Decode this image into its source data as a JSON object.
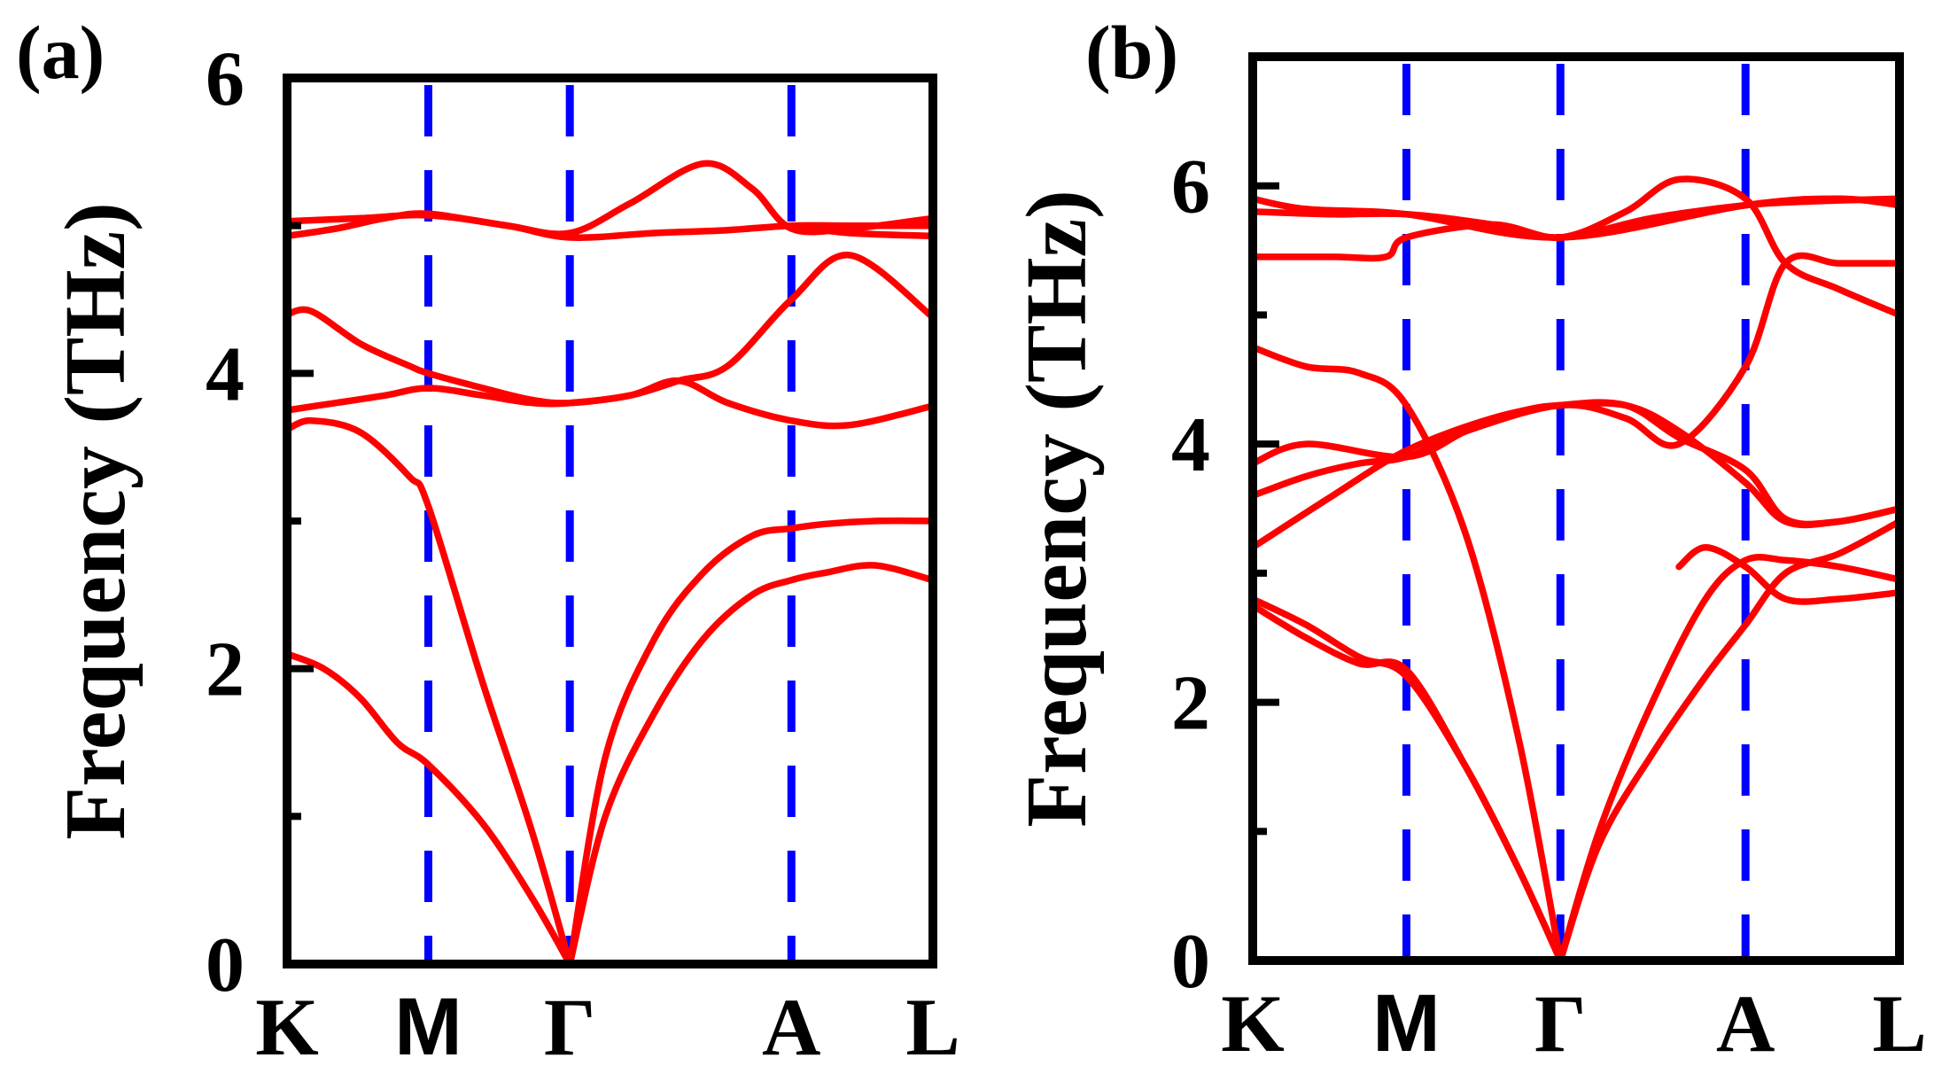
{
  "chart_data": [
    {
      "type": "line",
      "panel_label": "(a)",
      "ylabel": "Frequency (THz)",
      "xlabel": "",
      "ylim": [
        0,
        6
      ],
      "y_ticks": [
        "0",
        "2",
        "4",
        "6"
      ],
      "high_symmetry_points": [
        "K",
        "M",
        "Γ",
        "A",
        "L"
      ],
      "path_positions": [
        0,
        0.577,
        1.155,
        2.06,
        2.638
      ],
      "line_color": "#ff0000",
      "divider_color": "#0000ff",
      "series": [
        {
          "name": "band-1",
          "x": [
            0,
            0.15,
            0.3,
            0.45,
            0.577,
            0.8,
            1.0,
            1.155
          ],
          "y": [
            2.1,
            2.0,
            1.8,
            1.5,
            1.35,
            0.95,
            0.45,
            0.0
          ]
        },
        {
          "name": "band-2",
          "x": [
            0,
            0.1,
            0.3,
            0.5,
            0.577,
            0.8,
            1.0,
            1.155
          ],
          "y": [
            3.62,
            3.68,
            3.6,
            3.3,
            3.1,
            1.9,
            0.9,
            0.0
          ]
        },
        {
          "name": "band-3",
          "x": [
            1.155,
            1.3,
            1.5,
            1.7,
            1.9,
            2.06,
            2.2,
            2.4,
            2.638
          ],
          "y": [
            0.0,
            1.0,
            1.7,
            2.2,
            2.5,
            2.6,
            2.65,
            2.7,
            2.6
          ]
        },
        {
          "name": "band-4",
          "x": [
            1.155,
            1.3,
            1.5,
            1.7,
            1.9,
            2.06,
            2.2,
            2.4,
            2.638
          ],
          "y": [
            0.0,
            1.4,
            2.2,
            2.65,
            2.9,
            2.95,
            2.98,
            3.0,
            3.0
          ]
        },
        {
          "name": "band-5",
          "x": [
            0,
            0.2,
            0.4,
            0.577,
            0.8,
            1.0,
            1.155,
            1.4,
            1.6,
            1.8,
            2.06,
            2.3,
            2.638
          ],
          "y": [
            3.75,
            3.8,
            3.85,
            3.9,
            3.85,
            3.8,
            3.8,
            3.85,
            3.95,
            4.05,
            4.5,
            4.8,
            4.38
          ]
        },
        {
          "name": "band-6",
          "x": [
            0,
            0.1,
            0.3,
            0.5,
            0.577,
            0.8,
            1.0,
            1.155,
            1.4,
            1.6,
            1.8,
            2.06,
            2.3,
            2.638
          ],
          "y": [
            4.4,
            4.42,
            4.2,
            4.05,
            4.0,
            3.9,
            3.82,
            3.8,
            3.85,
            3.95,
            3.8,
            3.68,
            3.65,
            3.78
          ]
        },
        {
          "name": "band-7",
          "x": [
            0,
            0.3,
            0.577,
            0.9,
            1.155,
            1.5,
            1.8,
            2.06,
            2.3,
            2.638
          ],
          "y": [
            5.03,
            5.05,
            5.07,
            5.0,
            4.92,
            4.95,
            4.97,
            5.0,
            5.0,
            5.0
          ]
        },
        {
          "name": "band-8",
          "x": [
            0,
            0.2,
            0.4,
            0.577,
            0.9,
            1.155,
            1.4,
            1.7,
            1.9,
            2.06,
            2.3,
            2.638
          ],
          "y": [
            4.93,
            4.98,
            5.05,
            5.08,
            5.0,
            4.95,
            5.15,
            5.42,
            5.25,
            4.98,
            4.98,
            5.05
          ]
        },
        {
          "name": "band-9",
          "x": [
            2.06,
            2.3,
            2.638
          ],
          "y": [
            5.0,
            4.95,
            4.93
          ]
        }
      ]
    },
    {
      "type": "line",
      "panel_label": "(b)",
      "ylabel": "Frequency (THz)",
      "xlabel": "",
      "ylim": [
        0,
        7
      ],
      "y_ticks": [
        "0",
        "2",
        "4",
        "6"
      ],
      "high_symmetry_points": [
        "K",
        "M",
        "Γ",
        "A",
        "L"
      ],
      "path_positions": [
        0,
        0.577,
        1.155,
        1.85,
        2.428
      ],
      "line_color": "#ff0000",
      "divider_color": "#0000ff",
      "series": [
        {
          "name": "band-1",
          "x": [
            0,
            0.2,
            0.4,
            0.577,
            0.8,
            1.0,
            1.155
          ],
          "y": [
            2.8,
            2.6,
            2.35,
            2.2,
            1.5,
            0.7,
            0.0
          ]
        },
        {
          "name": "band-2",
          "x": [
            0,
            0.2,
            0.4,
            0.577,
            0.8,
            1.0,
            1.155
          ],
          "y": [
            2.75,
            2.5,
            2.3,
            2.25,
            1.5,
            0.7,
            0.0
          ]
        },
        {
          "name": "band-3",
          "x": [
            1.155,
            1.3,
            1.5,
            1.7,
            1.85,
            2.0,
            2.2,
            2.428
          ],
          "y": [
            0.0,
            1.0,
            2.0,
            2.8,
            3.1,
            3.1,
            3.05,
            2.95
          ]
        },
        {
          "name": "band-4",
          "x": [
            1.155,
            1.3,
            1.5,
            1.7,
            1.85,
            2.0,
            2.2,
            2.428
          ],
          "y": [
            0.0,
            0.9,
            1.6,
            2.2,
            2.6,
            3.0,
            3.15,
            3.4
          ]
        },
        {
          "name": "band-5",
          "x": [
            1.6,
            1.7,
            1.85,
            2.0,
            2.2,
            2.428
          ],
          "y": [
            3.05,
            3.2,
            3.05,
            2.8,
            2.8,
            2.85
          ]
        },
        {
          "name": "band-6",
          "x": [
            0,
            0.2,
            0.4,
            0.577,
            0.8,
            1.0,
            1.155
          ],
          "y": [
            4.75,
            4.6,
            4.55,
            4.3,
            3.3,
            1.7,
            0.0
          ]
        },
        {
          "name": "band-7",
          "x": [
            0,
            0.2,
            0.577,
            0.8,
            1.0,
            1.155,
            1.4,
            1.6,
            1.85,
            2.0,
            2.2,
            2.428
          ],
          "y": [
            3.85,
            4.0,
            3.9,
            4.1,
            4.25,
            4.3,
            4.3,
            4.1,
            3.7,
            3.4,
            3.4,
            3.5
          ]
        },
        {
          "name": "band-8",
          "x": [
            0,
            0.2,
            0.4,
            0.577,
            0.8,
            1.155,
            1.4,
            1.6,
            1.85,
            2.0,
            2.2,
            2.428
          ],
          "y": [
            3.6,
            3.75,
            3.85,
            3.9,
            4.1,
            4.3,
            4.2,
            4.0,
            4.6,
            5.4,
            5.4,
            5.4
          ]
        },
        {
          "name": "band-9",
          "x": [
            0,
            0.3,
            0.577,
            0.9,
            1.155,
            1.4,
            1.6,
            1.85,
            2.0,
            2.2,
            2.428
          ],
          "y": [
            3.2,
            3.6,
            3.95,
            4.2,
            4.3,
            4.3,
            4.05,
            3.8,
            3.42,
            3.4,
            3.5
          ]
        },
        {
          "name": "band-10",
          "x": [
            0,
            0.3,
            0.5,
            0.577,
            0.9,
            1.155,
            1.4,
            1.6,
            1.85,
            2.0,
            2.2,
            2.428
          ],
          "y": [
            5.45,
            5.45,
            5.45,
            5.6,
            5.7,
            5.6,
            5.8,
            6.05,
            5.9,
            5.4,
            5.2,
            5.0
          ]
        },
        {
          "name": "band-11",
          "x": [
            0,
            0.3,
            0.577,
            0.9,
            1.155,
            1.5,
            1.85,
            2.1,
            2.428
          ],
          "y": [
            5.8,
            5.78,
            5.78,
            5.7,
            5.6,
            5.75,
            5.85,
            5.88,
            5.9
          ]
        },
        {
          "name": "band-12",
          "x": [
            0,
            0.2,
            0.577,
            1.155,
            1.85,
            2.2,
            2.428
          ],
          "y": [
            5.9,
            5.82,
            5.78,
            5.6,
            5.85,
            5.9,
            5.85
          ]
        }
      ]
    }
  ]
}
